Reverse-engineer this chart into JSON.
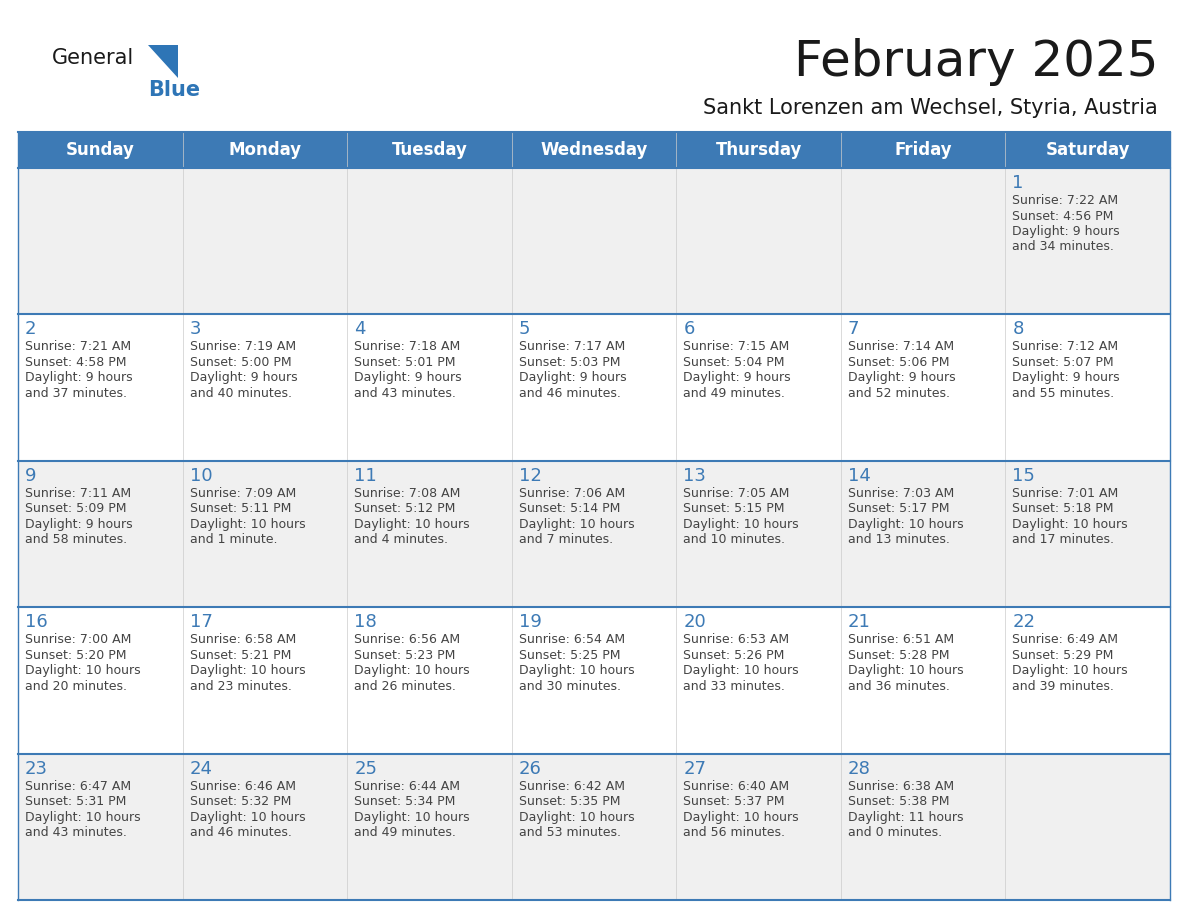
{
  "title": "February 2025",
  "subtitle": "Sankt Lorenzen am Wechsel, Styria, Austria",
  "days_of_week": [
    "Sunday",
    "Monday",
    "Tuesday",
    "Wednesday",
    "Thursday",
    "Friday",
    "Saturday"
  ],
  "header_bg": "#3d7ab5",
  "header_text": "#ffffff",
  "cell_bg_odd": "#f0f0f0",
  "cell_bg_even": "#ffffff",
  "grid_line_color": "#3d7ab5",
  "day_number_color": "#3d7ab5",
  "text_color": "#444444",
  "title_color": "#1a1a1a",
  "subtitle_color": "#1a1a1a",
  "logo_general_color": "#1a1a1a",
  "logo_blue_color": "#2e75b6",
  "calendar_data": [
    [
      null,
      null,
      null,
      null,
      null,
      null,
      {
        "day": 1,
        "sunrise": "7:22 AM",
        "sunset": "4:56 PM",
        "daylight": "9 hours and 34 minutes."
      }
    ],
    [
      {
        "day": 2,
        "sunrise": "7:21 AM",
        "sunset": "4:58 PM",
        "daylight": "9 hours and 37 minutes."
      },
      {
        "day": 3,
        "sunrise": "7:19 AM",
        "sunset": "5:00 PM",
        "daylight": "9 hours and 40 minutes."
      },
      {
        "day": 4,
        "sunrise": "7:18 AM",
        "sunset": "5:01 PM",
        "daylight": "9 hours and 43 minutes."
      },
      {
        "day": 5,
        "sunrise": "7:17 AM",
        "sunset": "5:03 PM",
        "daylight": "9 hours and 46 minutes."
      },
      {
        "day": 6,
        "sunrise": "7:15 AM",
        "sunset": "5:04 PM",
        "daylight": "9 hours and 49 minutes."
      },
      {
        "day": 7,
        "sunrise": "7:14 AM",
        "sunset": "5:06 PM",
        "daylight": "9 hours and 52 minutes."
      },
      {
        "day": 8,
        "sunrise": "7:12 AM",
        "sunset": "5:07 PM",
        "daylight": "9 hours and 55 minutes."
      }
    ],
    [
      {
        "day": 9,
        "sunrise": "7:11 AM",
        "sunset": "5:09 PM",
        "daylight": "9 hours and 58 minutes."
      },
      {
        "day": 10,
        "sunrise": "7:09 AM",
        "sunset": "5:11 PM",
        "daylight": "10 hours and 1 minute."
      },
      {
        "day": 11,
        "sunrise": "7:08 AM",
        "sunset": "5:12 PM",
        "daylight": "10 hours and 4 minutes."
      },
      {
        "day": 12,
        "sunrise": "7:06 AM",
        "sunset": "5:14 PM",
        "daylight": "10 hours and 7 minutes."
      },
      {
        "day": 13,
        "sunrise": "7:05 AM",
        "sunset": "5:15 PM",
        "daylight": "10 hours and 10 minutes."
      },
      {
        "day": 14,
        "sunrise": "7:03 AM",
        "sunset": "5:17 PM",
        "daylight": "10 hours and 13 minutes."
      },
      {
        "day": 15,
        "sunrise": "7:01 AM",
        "sunset": "5:18 PM",
        "daylight": "10 hours and 17 minutes."
      }
    ],
    [
      {
        "day": 16,
        "sunrise": "7:00 AM",
        "sunset": "5:20 PM",
        "daylight": "10 hours and 20 minutes."
      },
      {
        "day": 17,
        "sunrise": "6:58 AM",
        "sunset": "5:21 PM",
        "daylight": "10 hours and 23 minutes."
      },
      {
        "day": 18,
        "sunrise": "6:56 AM",
        "sunset": "5:23 PM",
        "daylight": "10 hours and 26 minutes."
      },
      {
        "day": 19,
        "sunrise": "6:54 AM",
        "sunset": "5:25 PM",
        "daylight": "10 hours and 30 minutes."
      },
      {
        "day": 20,
        "sunrise": "6:53 AM",
        "sunset": "5:26 PM",
        "daylight": "10 hours and 33 minutes."
      },
      {
        "day": 21,
        "sunrise": "6:51 AM",
        "sunset": "5:28 PM",
        "daylight": "10 hours and 36 minutes."
      },
      {
        "day": 22,
        "sunrise": "6:49 AM",
        "sunset": "5:29 PM",
        "daylight": "10 hours and 39 minutes."
      }
    ],
    [
      {
        "day": 23,
        "sunrise": "6:47 AM",
        "sunset": "5:31 PM",
        "daylight": "10 hours and 43 minutes."
      },
      {
        "day": 24,
        "sunrise": "6:46 AM",
        "sunset": "5:32 PM",
        "daylight": "10 hours and 46 minutes."
      },
      {
        "day": 25,
        "sunrise": "6:44 AM",
        "sunset": "5:34 PM",
        "daylight": "10 hours and 49 minutes."
      },
      {
        "day": 26,
        "sunrise": "6:42 AM",
        "sunset": "5:35 PM",
        "daylight": "10 hours and 53 minutes."
      },
      {
        "day": 27,
        "sunrise": "6:40 AM",
        "sunset": "5:37 PM",
        "daylight": "10 hours and 56 minutes."
      },
      {
        "day": 28,
        "sunrise": "6:38 AM",
        "sunset": "5:38 PM",
        "daylight": "11 hours and 0 minutes."
      },
      null
    ]
  ],
  "figsize": [
    11.88,
    9.18
  ],
  "dpi": 100
}
